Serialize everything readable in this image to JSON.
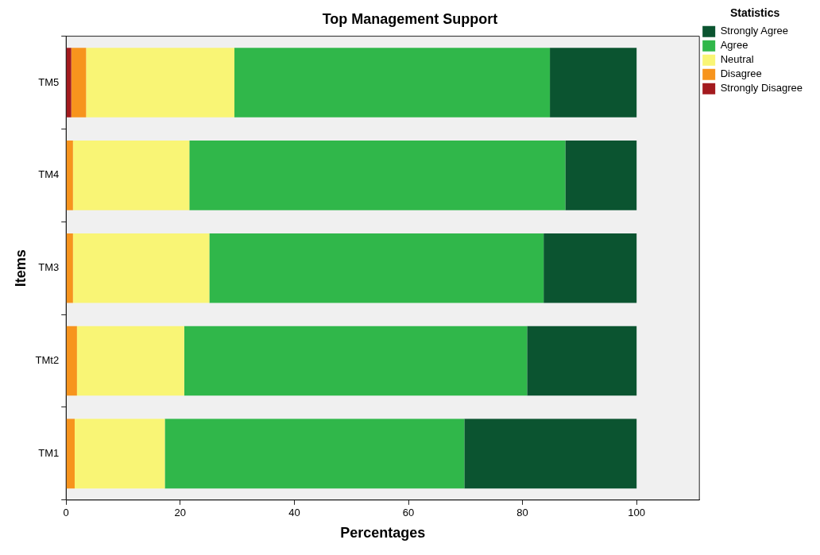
{
  "chart_data": {
    "type": "bar",
    "orientation": "horizontal",
    "stacked": true,
    "title": "Top Management Support",
    "xlabel": "Percentages",
    "ylabel": "Items",
    "legend_title": "Statistics",
    "legend": "top right",
    "grid": false,
    "categories": [
      "TM5",
      "TM4",
      "TM3",
      "TMt2",
      "TM1"
    ],
    "xlim": [
      0,
      111
    ],
    "xticks": [
      0,
      20,
      40,
      60,
      80,
      100
    ],
    "series": [
      {
        "name": "Strongly Disagree",
        "color": "#a31a1e",
        "values": [
          0.9,
          0,
          0,
          0,
          0
        ]
      },
      {
        "name": "Disagree",
        "color": "#f7941d",
        "values": [
          2.6,
          1.2,
          1.2,
          1.9,
          1.5
        ]
      },
      {
        "name": "Neutral",
        "color": "#f9f575",
        "values": [
          26.0,
          20.4,
          23.9,
          18.8,
          15.8
        ]
      },
      {
        "name": "Agree",
        "color": "#30b74a",
        "values": [
          55.3,
          65.9,
          58.6,
          60.1,
          52.5
        ]
      },
      {
        "name": "Strongly Agree",
        "color": "#0b5430",
        "values": [
          15.2,
          12.5,
          16.3,
          19.2,
          30.2
        ]
      }
    ]
  }
}
